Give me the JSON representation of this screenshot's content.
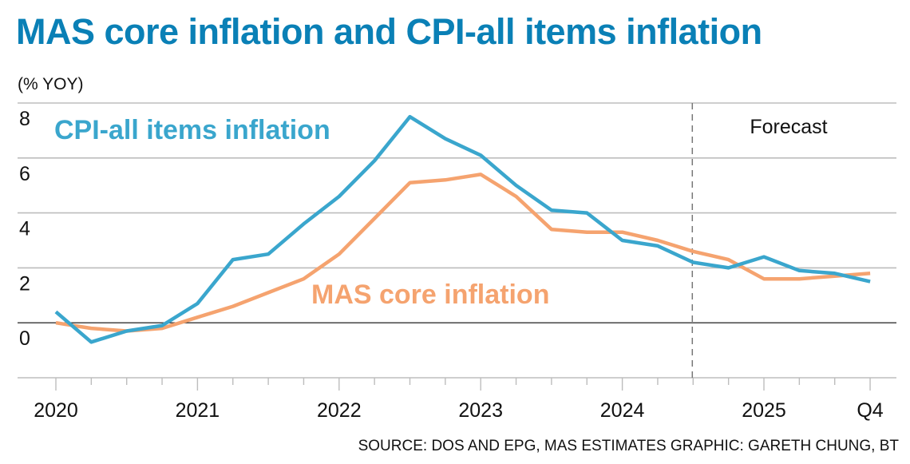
{
  "chart_data": {
    "type": "line",
    "title": "MAS core inflation and CPI-all items inflation",
    "ylabel": "(% YOY)",
    "xlabel": "",
    "ylim": [
      -2,
      8
    ],
    "yticks": [
      0,
      2,
      4,
      6,
      8
    ],
    "ytick_labels": [
      "0",
      "2",
      "4",
      "6",
      "8"
    ],
    "grid": true,
    "x": [
      "2020Q1",
      "2020Q2",
      "2020Q3",
      "2020Q4",
      "2021Q1",
      "2021Q2",
      "2021Q3",
      "2021Q4",
      "2022Q1",
      "2022Q2",
      "2022Q3",
      "2022Q4",
      "2023Q1",
      "2023Q2",
      "2023Q3",
      "2023Q4",
      "2024Q1",
      "2024Q2",
      "2024Q3",
      "2024Q4",
      "2025Q1",
      "2025Q2",
      "2025Q3",
      "2025Q4"
    ],
    "xtick_labels": [
      {
        "index": 0,
        "label": "2020"
      },
      {
        "index": 4,
        "label": "2021"
      },
      {
        "index": 8,
        "label": "2022"
      },
      {
        "index": 12,
        "label": "2023"
      },
      {
        "index": 16,
        "label": "2024"
      },
      {
        "index": 20,
        "label": "2025"
      },
      {
        "index": 23,
        "label": "Q4"
      }
    ],
    "forecast_start_index": 18,
    "forecast_label": "Forecast",
    "series": [
      {
        "name": "CPI-all items inflation",
        "color": "#3aa6cd",
        "values": [
          0.4,
          -0.7,
          -0.3,
          -0.1,
          0.7,
          2.3,
          2.5,
          3.6,
          4.6,
          5.9,
          7.5,
          6.7,
          6.1,
          5.0,
          4.1,
          4.0,
          3.0,
          2.8,
          2.2,
          2.0,
          2.4,
          1.9,
          1.8,
          1.5
        ]
      },
      {
        "name": "MAS core inflation",
        "color": "#f5a36f",
        "values": [
          0.0,
          -0.2,
          -0.3,
          -0.2,
          0.2,
          0.6,
          1.1,
          1.6,
          2.5,
          3.8,
          5.1,
          5.2,
          5.4,
          4.6,
          3.4,
          3.3,
          3.3,
          3.0,
          2.6,
          2.3,
          1.6,
          1.6,
          1.7,
          1.8
        ]
      }
    ],
    "annotations": [
      {
        "text": "CPI-all items inflation",
        "series": 0
      },
      {
        "text": "MAS core inflation",
        "series": 1
      }
    ]
  },
  "header": {
    "title": "MAS core inflation and CPI-all items inflation",
    "unit": "(% YOY)"
  },
  "footer": {
    "source": "SOURCE: DOS AND EPG, MAS ESTIMATES   GRAPHIC: GARETH CHUNG, BT"
  },
  "colors": {
    "title": "#0a80b6",
    "cpi": "#3aa6cd",
    "core": "#f5a36f"
  }
}
